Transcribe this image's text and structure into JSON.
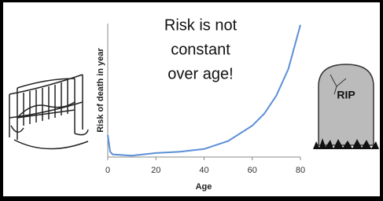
{
  "chart_data": {
    "type": "line",
    "annotation_lines": [
      "Risk is not",
      "constant",
      "over age!"
    ],
    "y_label": "Risk of death in year",
    "x_label": "Age",
    "tombstone_text": "RIP",
    "x": [
      0,
      1,
      2,
      10,
      20,
      30,
      40,
      50,
      60,
      65,
      70,
      75,
      80
    ],
    "series": [
      {
        "color": "#5b8fd6",
        "values": [
          0.033,
          0.008,
          0.004,
          0.002,
          0.006,
          0.008,
          0.012,
          0.024,
          0.047,
          0.065,
          0.092,
          0.132,
          0.198
        ]
      }
    ],
    "xlim": [
      0,
      80
    ],
    "xticks": [
      0,
      20,
      40,
      60,
      80
    ],
    "ylim": [
      0,
      0.2
    ]
  }
}
